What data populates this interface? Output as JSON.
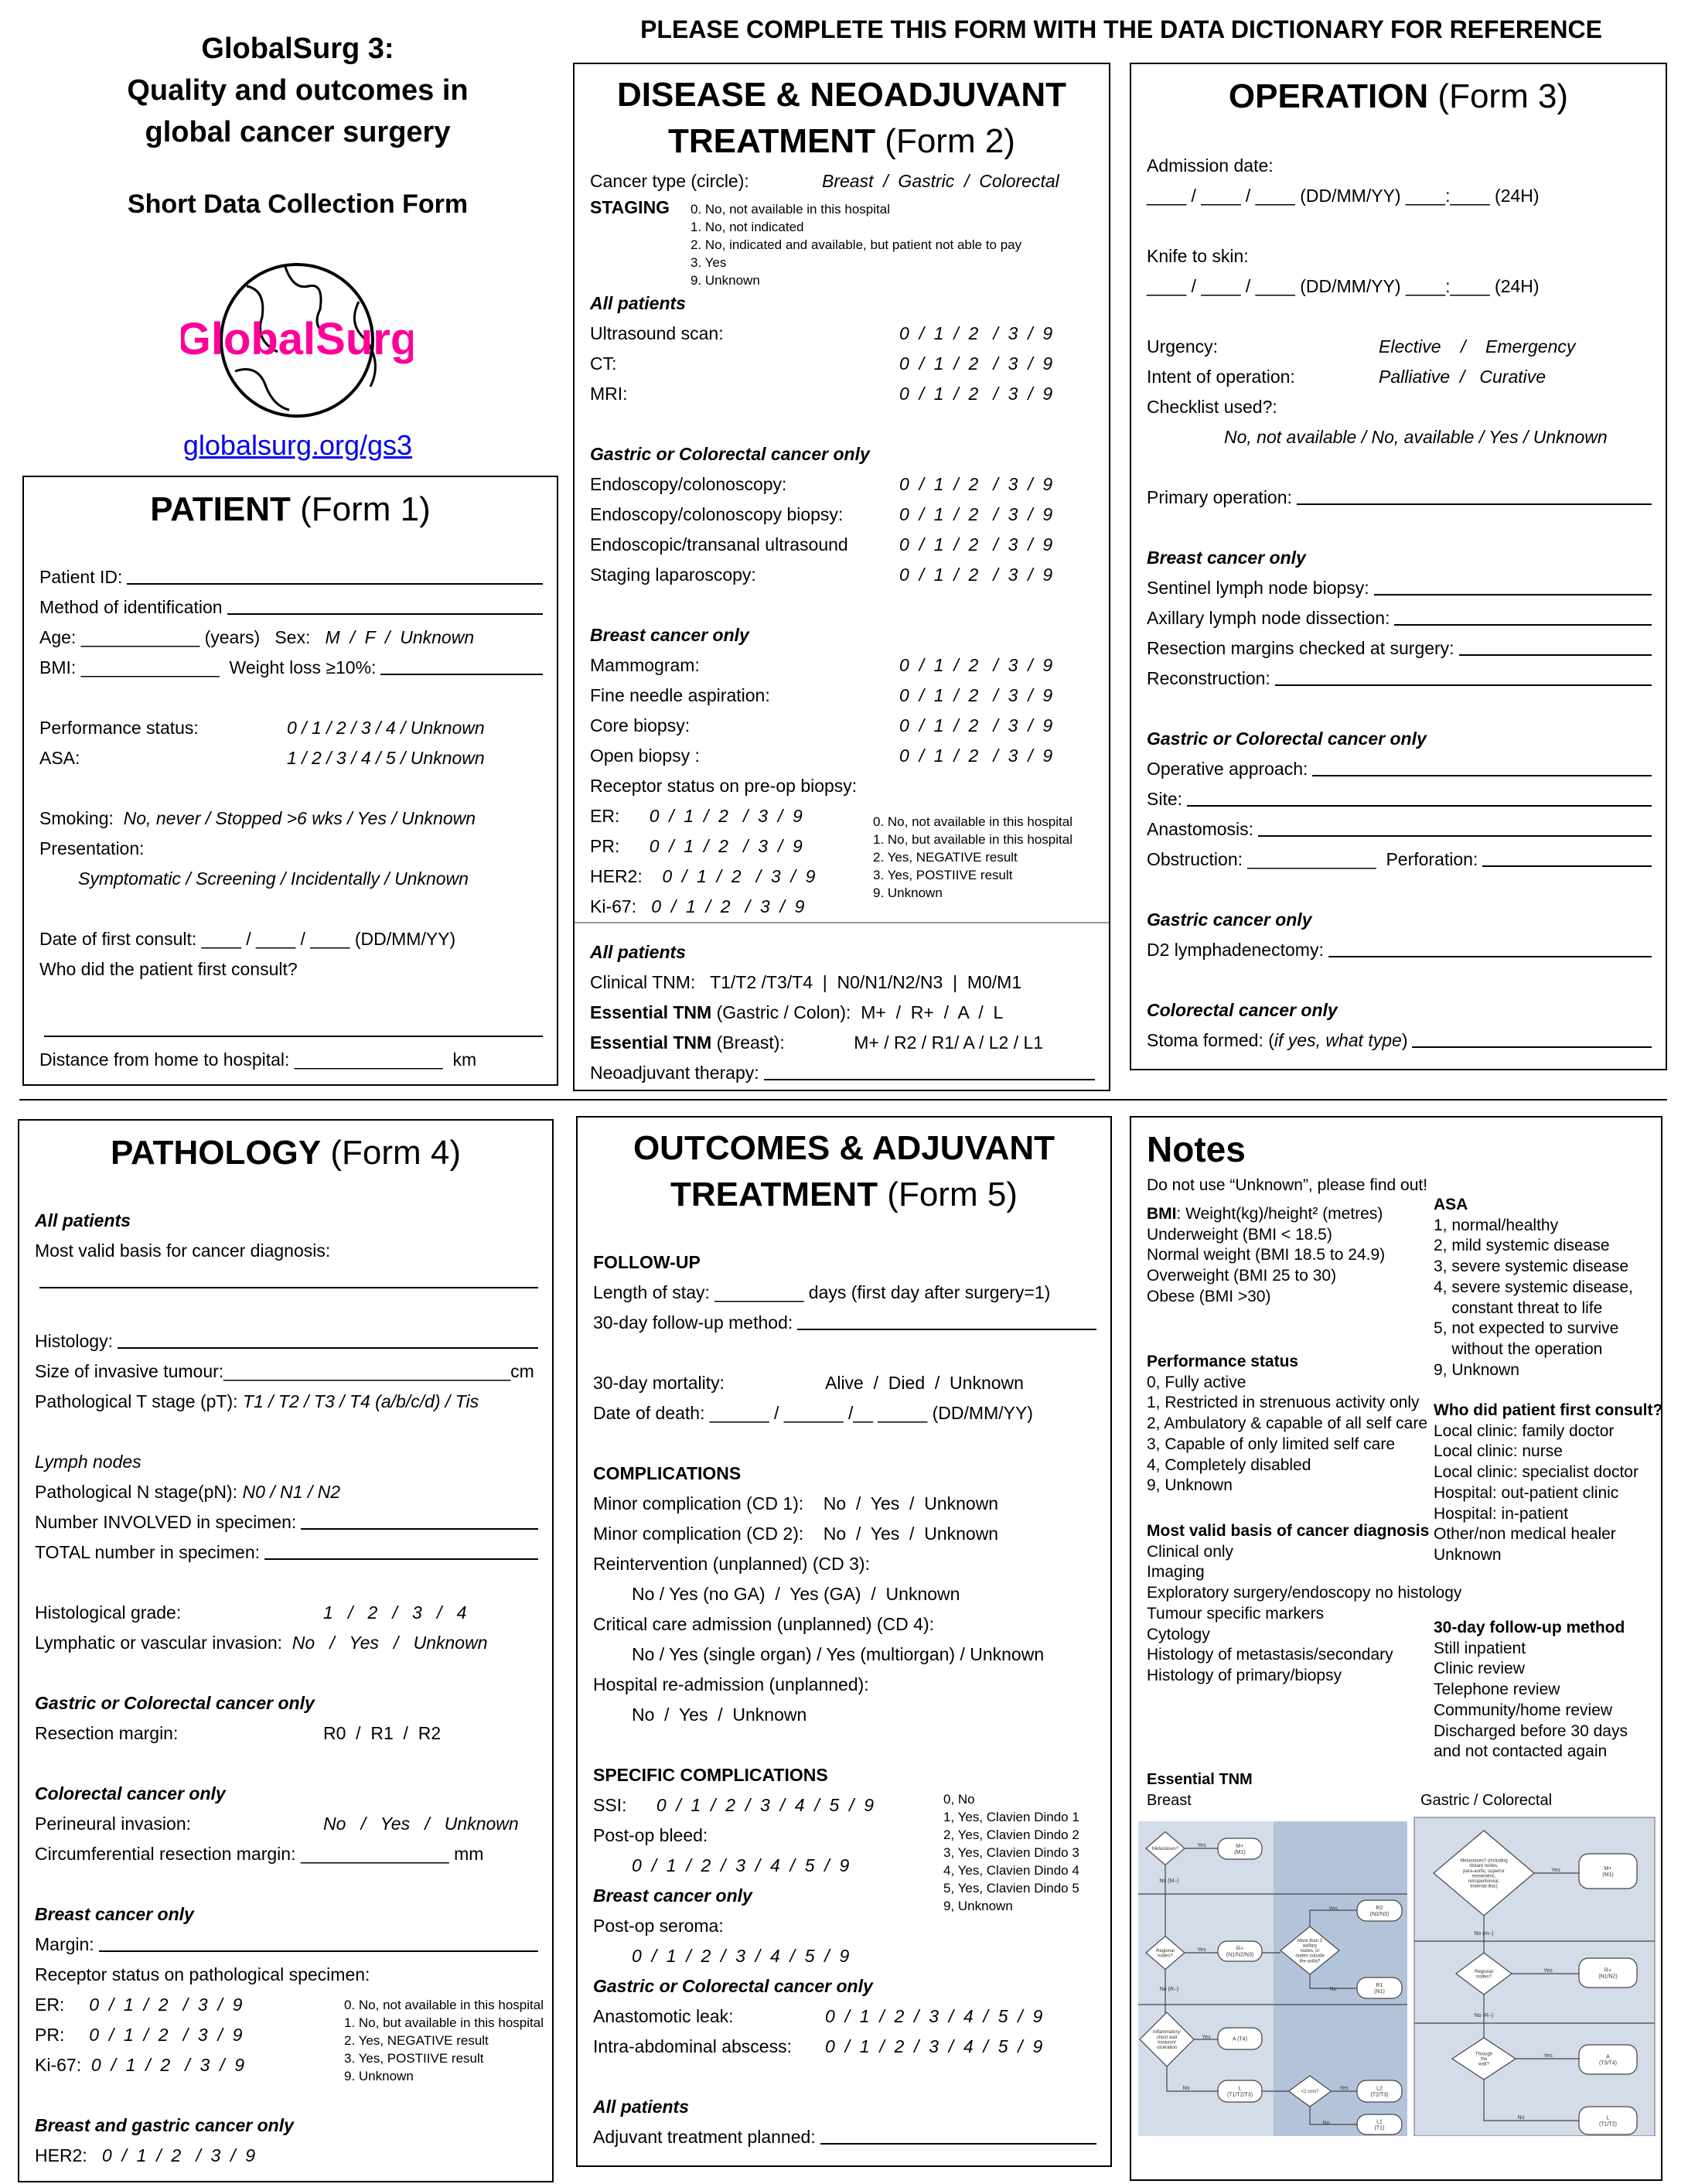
{
  "header": {
    "title_lines": [
      "GlobalSurg 3:",
      "Quality and outcomes in",
      "global cancer surgery"
    ],
    "subtitle": "Short Data Collection Form",
    "instruction": "PLEASE COMPLETE THIS FORM WITH THE DATA DICTIONARY FOR REFERENCE",
    "logo_text": "GlobalSurg",
    "logo_color": "#ff0099",
    "link": "globalsurg.org/gs3",
    "link_color": "#0000ee"
  },
  "form1": {
    "title": "PATIENT",
    "form": " (Form 1)",
    "lines": [
      {
        "l": "Patient ID:",
        "fill": true
      },
      {
        "l": "Method of identification",
        "fill": true
      },
      {
        "l": "Age: ____________ (years)   Sex:   ",
        "iv": "M  /  F  /  Unknown",
        "it": true
      },
      {
        "l": "BMI: ______________  Weight loss ≥10%:",
        "fill": true
      },
      {},
      {
        "l": "Performance status:",
        "v": "0 / 1 / 2 / 3 / 4 / Unknown",
        "it": true
      },
      {
        "l": "ASA:",
        "v": "1 / 2 / 3 / 4 / 5 / Unknown",
        "it": true
      },
      {},
      {
        "l": "Smoking:  ",
        "iv": "No, never / Stopped >6 wks / Yes / Unknown",
        "it": true
      },
      {
        "l": "Presentation:"
      },
      {
        "iv": "Symptomatic / Screening / Incidentally / Unknown",
        "it": true,
        "sub": true
      },
      {},
      {
        "l": "Date of first consult: ____ / ____ / ____ (DD/MM/YY)"
      },
      {
        "l": "Who did the patient first consult?"
      },
      {},
      {
        "l": "",
        "fill": true
      },
      {
        "l": "Distance from home to hospital: _______________  km"
      }
    ]
  },
  "form2": {
    "title_lines": [
      "DISEASE & NEOADJUVANT",
      "TREATMENT"
    ],
    "form": " (Form 2)",
    "cancer_type_label": "Cancer type (circle):",
    "cancer_type_options": "Breast  /  Gastric  /  Colorectal",
    "staging_label": "STAGING",
    "staging_legend": [
      "0. No, not available in this hospital",
      "1. No, not indicated",
      "2. No, indicated and available, but patient not able to pay",
      "3. Yes",
      "9. Unknown"
    ],
    "receptor_legend": [
      "0. No, not available in this hospital",
      "1. No, but available in this hospital",
      "2. Yes, NEGATIVE result",
      "3. Yes, POSTIIVE result",
      "9. Unknown"
    ],
    "lines": [
      {
        "h": "All patients"
      },
      {
        "l": "Ultrasound scan:",
        "v": "0  /  1  /  2   /  3  /  9",
        "it": true
      },
      {
        "l": "CT:",
        "v": "0  /  1  /  2   /  3  /  9",
        "it": true
      },
      {
        "l": "MRI:",
        "v": "0  /  1  /  2   /  3  /  9",
        "it": true
      },
      {},
      {
        "h": "Gastric or Colorectal cancer only"
      },
      {
        "l": "Endoscopy/colonoscopy:",
        "v": "0  /  1  /  2   /  3  /  9",
        "it": true
      },
      {
        "l": "Endoscopy/colonoscopy biopsy:",
        "v": "0  /  1  /  2   /  3  /  9",
        "it": true
      },
      {
        "l": "Endoscopic/transanal ultrasound",
        "v": "0  /  1  /  2   /  3  /  9",
        "it": true
      },
      {
        "l": "Staging laparoscopy:",
        "v": "0  /  1  /  2   /  3  /  9",
        "it": true
      },
      {},
      {
        "h": "Breast cancer only"
      },
      {
        "l": "Mammogram:",
        "v": "0  /  1  /  2   /  3  /  9",
        "it": true
      },
      {
        "l": "Fine needle aspiration:",
        "v": "0  /  1  /  2   /  3  /  9",
        "it": true
      },
      {
        "l": "Core biopsy:",
        "v": "0  /  1  /  2   /  3  /  9",
        "it": true
      },
      {
        "l": "Open biopsy :",
        "v": "0  /  1  /  2   /  3  /  9",
        "it": true
      },
      {
        "l": "Receptor status on pre-op biopsy:"
      },
      {
        "l": "ER:      ",
        "iv": "0  /  1  /  2   /  3  /  9",
        "it": true
      },
      {
        "l": "PR:      ",
        "iv": "0  /  1  /  2   /  3  /  9",
        "it": true
      },
      {
        "l": "HER2:    ",
        "iv": "0  /  1  /  2   /  3  /  9",
        "it": true
      },
      {
        "l": "Ki-67:   ",
        "iv": "0  /  1  /  2   /  3  /  9",
        "it": true
      },
      {
        "divider": true
      },
      {
        "h": "All patients"
      },
      {
        "l": "Clinical TNM:   T1/T2 /T3/T4  |  N0/N1/N2/N3  |  M0/M1"
      },
      {
        "lb": "Essential TNM",
        "l": " (Gastric / Colon):  M+  /  R+  /  A  /  L"
      },
      {
        "lb": "Essential TNM",
        "l": " (Breast):              M+ / R2 / R1/ A / L2 / L1"
      },
      {
        "l": "Neoadjuvant therapy:",
        "fill": true
      }
    ]
  },
  "form3": {
    "title": "OPERATION",
    "form": " (Form 3)",
    "lines": [
      {
        "l": "Admission date:"
      },
      {
        "l": "____ / ____ / ____ (DD/MM/YY) ____:____ (24H)"
      },
      {},
      {
        "l": "Knife to skin:"
      },
      {
        "l": "____ / ____ / ____ (DD/MM/YY) ____:____ (24H)"
      },
      {},
      {
        "l": "Urgency:",
        "v": "Elective    /    Emergency",
        "it": true
      },
      {
        "l": "Intent of operation:",
        "v": "Palliative  /   Curative",
        "it": true
      },
      {
        "l": "Checklist used?:"
      },
      {
        "iv": "No, not available / No, available / Yes / Unknown",
        "it": true,
        "sub": true,
        "wide": true
      },
      {},
      {
        "l": "Primary operation:",
        "fill": true
      },
      {},
      {
        "h": "Breast cancer only"
      },
      {
        "l": "Sentinel lymph node biopsy:",
        "fill": true
      },
      {
        "l": "Axillary lymph node dissection:",
        "fill": true
      },
      {
        "l": "Resection margins checked at surgery:",
        "fill": true
      },
      {
        "l": "Reconstruction:",
        "fill": true
      },
      {},
      {
        "h": "Gastric or Colorectal cancer only"
      },
      {
        "l": "Operative approach:",
        "fill": true
      },
      {
        "l": "Site:",
        "fill": true
      },
      {
        "l": "Anastomosis:",
        "fill": true
      },
      {
        "l": "Obstruction: _____________  Perforation:",
        "fill": true
      },
      {},
      {
        "h": "Gastric cancer only"
      },
      {
        "l": "D2 lymphadenectomy:",
        "fill": true
      },
      {},
      {
        "h": "Colorectal cancer only"
      },
      {
        "l": "Stoma formed: (",
        "iv": "if yes, what type",
        "it": true,
        "l2": ")",
        "fill": true
      }
    ]
  },
  "form4": {
    "title": "PATHOLOGY",
    "form": " (Form 4)",
    "receptor_legend": [
      "0. No, not available in this hospital",
      "1. No, but available in this hospital",
      "2. Yes, NEGATIVE result",
      "3. Yes, POSTIIVE result",
      "9. Unknown"
    ],
    "lines": [
      {
        "h": "All patients"
      },
      {
        "l": "Most valid basis for cancer diagnosis:"
      },
      {
        "l": "",
        "fill": true
      },
      {},
      {
        "l": "Histology:",
        "fill": true
      },
      {
        "l": "Size of invasive tumour:_____________________________cm"
      },
      {
        "l": "Pathological T stage (pT): ",
        "iv": "T1 / T2 / T3 / T4 (a/b/c/d) / Tis",
        "it": true
      },
      {},
      {
        "li": "Lymph nodes"
      },
      {
        "l": "Pathological N stage(pN): ",
        "iv": "N0 / N1 / N2",
        "it": true
      },
      {
        "l": "Number INVOLVED in specimen:",
        "fill": true
      },
      {
        "l": "TOTAL number in specimen:",
        "fill": true
      },
      {},
      {
        "l": "Histological grade:",
        "v": "1   /   2   /   3   /   4",
        "it": true
      },
      {
        "l": "Lymphatic or vascular invasion:  ",
        "iv": "No   /   Yes   /   Unknown",
        "it": true
      },
      {},
      {
        "h": "Gastric or Colorectal cancer only"
      },
      {
        "l": "Resection margin:",
        "v": "R0  /  R1  /  R2"
      },
      {},
      {
        "h": "Colorectal cancer only"
      },
      {
        "l": "Perineural invasion:",
        "v": "No   /   Yes   /   Unknown",
        "it": true
      },
      {
        "l": "Circumferential resection margin: _______________ mm"
      },
      {},
      {
        "h": "Breast cancer only"
      },
      {
        "l": "Margin:",
        "fill": true
      },
      {
        "l": "Receptor status on pathological specimen:"
      },
      {
        "l": "ER:     ",
        "iv": "0  /  1  /  2   /  3  /  9",
        "it": true
      },
      {
        "l": "PR:     ",
        "iv": "0  /  1  /  2   /  3  /  9",
        "it": true
      },
      {
        "l": "Ki-67:  ",
        "iv": "0  /  1  /  2   /  3  /  9",
        "it": true
      },
      {},
      {
        "h": "Breast and gastric cancer only"
      },
      {
        "l": "HER2:   ",
        "iv": "0  /  1  /  2   /  3  /  9",
        "it": true
      }
    ]
  },
  "form5": {
    "title_lines": [
      "OUTCOMES & ADJUVANT",
      "TREATMENT"
    ],
    "form": " (Form 5)",
    "cd_legend": [
      "0, No",
      "1, Yes, Clavien Dindo 1",
      "2, Yes, Clavien Dindo 2",
      "3, Yes, Clavien Dindo 3",
      "4, Yes, Clavien Dindo 4",
      "5, Yes, Clavien Dindo 5",
      "9, Unknown"
    ],
    "lines": [
      {
        "hb": "FOLLOW-UP"
      },
      {
        "l": "Length of stay: _________ days (first day after surgery=1)"
      },
      {
        "l": "30-day follow-up method:",
        "fill": true
      },
      {},
      {
        "l": "30-day mortality:",
        "v": "Alive  /  Died  /  Unknown"
      },
      {
        "l": "Date of death: ______ / ______ /__ _____ (DD/MM/YY)"
      },
      {},
      {
        "hb": "COMPLICATIONS"
      },
      {
        "l": "Minor complication (CD 1):    No  /  Yes  /  Unknown"
      },
      {
        "l": "Minor complication (CD 2):    No  /  Yes  /  Unknown"
      },
      {
        "l": "Reintervention (unplanned) (CD 3):"
      },
      {
        "iv": "No / Yes (no GA)  /  Yes (GA)  /  Unknown",
        "sub": true
      },
      {
        "l": "Critical care admission (unplanned) (CD 4):"
      },
      {
        "iv": "No / Yes (single organ) / Yes (multiorgan) / Unknown",
        "sub": true
      },
      {
        "l": "Hospital re-admission (unplanned):"
      },
      {
        "iv": "No  /  Yes  /  Unknown",
        "sub": true
      },
      {},
      {
        "hb": "SPECIFIC COMPLICATIONS"
      },
      {
        "l": "SSI:      ",
        "iv": "0  /  1  /  2  /  3  /  4  /  5  /  9",
        "it": true
      },
      {
        "l": "Post-op bleed:"
      },
      {
        "iv": "0  /  1  /  2  /  3  /  4  /  5  /  9",
        "it": true,
        "sub": true
      },
      {
        "h": "Breast cancer only"
      },
      {
        "l": "Post-op seroma:"
      },
      {
        "iv": "0  /  1  /  2  /  3  /  4  /  5  /  9",
        "it": true,
        "sub": true
      },
      {
        "h": "Gastric or Colorectal cancer only"
      },
      {
        "l": "Anastomotic leak:",
        "v": "0  /  1  /  2  /  3  /  4  /  5  /  9",
        "it": true
      },
      {
        "l": "Intra-abdominal abscess:",
        "v": "0  /  1  /  2  /  3  /  4  /  5  /  9",
        "it": true
      },
      {},
      {
        "h": "All patients"
      },
      {
        "l": "Adjuvant treatment planned:",
        "fill": true
      }
    ]
  },
  "notes": {
    "title": "Notes",
    "warning": "Do not use “Unknown”, please find out!",
    "bmi": {
      "head": "BMI",
      "formula": ": Weight(kg)/height² (metres)",
      "items": [
        "Underweight (BMI < 18.5)",
        "Normal weight (BMI 18.5 to 24.9)",
        "Overweight (BMI 25 to 30)",
        "Obese (BMI >30)"
      ]
    },
    "performance": {
      "head": "Performance status",
      "items": [
        "0, Fully active",
        "1, Restricted in strenuous activity only",
        "2, Ambulatory & capable of all self care",
        "3, Capable of only limited self care",
        "4, Completely disabled",
        "9, Unknown"
      ]
    },
    "basis": {
      "head": "Most valid basis of cancer diagnosis",
      "items": [
        "Clinical only",
        "Imaging",
        "Exploratory surgery/endoscopy no histology",
        "Tumour specific markers",
        "Cytology",
        "Histology of metastasis/secondary",
        "Histology of primary/biopsy"
      ]
    },
    "asa": {
      "head": "ASA",
      "items": [
        "1, normal/healthy",
        "2, mild systemic disease",
        "3, severe systemic disease",
        "4, severe systemic disease,",
        "    constant threat to life",
        "5, not expected to survive",
        "    without the operation",
        "9, Unknown"
      ]
    },
    "consult": {
      "head": "Who did patient first consult?",
      "items": [
        "Local clinic: family doctor",
        "Local clinic: nurse",
        "Local clinic: specialist doctor",
        "Hospital: out-patient clinic",
        "Hospital: in-patient",
        "Other/non medical healer",
        "Unknown"
      ]
    },
    "followup": {
      "head": "30-day follow-up method",
      "items": [
        "Still inpatient",
        "Clinic review",
        "Telephone review",
        "Community/home review",
        "Discharged before 30 days",
        "and not contacted again"
      ]
    },
    "tnm_head": "Essential TNM",
    "breast_label": "Breast",
    "gc_label": "Gastric / Colorectal",
    "panel_color": "#d3dce8",
    "panel_dark_color": "#b3c4da",
    "breast_chart": {
      "diamonds": [
        "Metastases?",
        "Regional nodes?",
        "More than 3 axillary nodes, or nodes outside the axilla?",
        "Inflammatory/ chest wall invasion/ ulceration",
        "<2 cms?"
      ],
      "boxes": [
        "M+ (M1)",
        "R+ (N1/N2/N3)",
        "R2 (N2/N3)",
        "R1 (N1)",
        "A (T4)",
        "L (T1/T2/T3)",
        "L2 (T2/T3)",
        "L1 (T1)"
      ],
      "edges": [
        "Yes",
        "No (M–)",
        "Yes",
        "Yes",
        "No",
        "No (R–)",
        "Yes",
        "No",
        "Yes",
        "No"
      ]
    },
    "gc_chart": {
      "diamonds": [
        "Metastases? (including distant nodes, para-aortic, superior mesenteric, retroperitoneal, external iliac)",
        "Regional nodes?",
        "Through the wall?"
      ],
      "boxes": [
        "M+ (M1)",
        "R+ (N1/N2)",
        "A (T3/T4)",
        "L (T1/T2)"
      ],
      "edges": [
        "Yes",
        "No (m–)",
        "Yes",
        "No (R–)",
        "Yes",
        "No"
      ]
    }
  }
}
